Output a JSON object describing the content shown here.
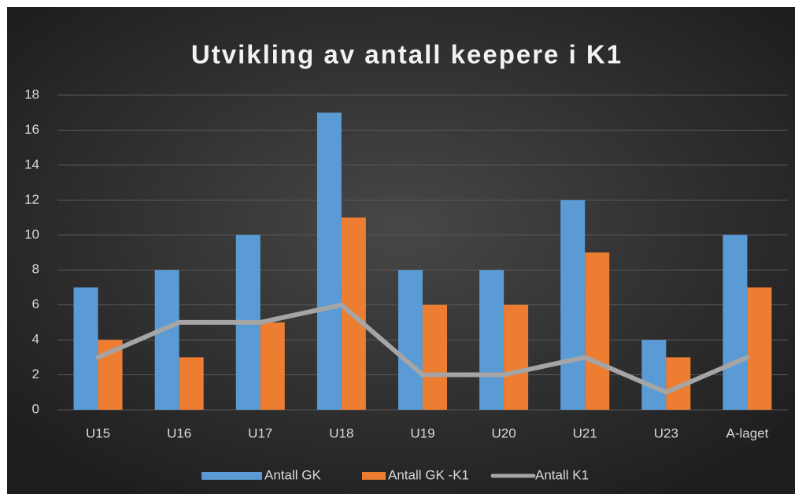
{
  "chart_data": {
    "type": "bar",
    "title": "Utvikling av antall keepere i K1",
    "categories": [
      "U15",
      "U16",
      "U17",
      "U18",
      "U19",
      "U20",
      "U21",
      "U23",
      "A-laget"
    ],
    "series": [
      {
        "name": "Antall GK",
        "color": "#5b9bd5",
        "type": "bar",
        "values": [
          7,
          8,
          10,
          17,
          8,
          8,
          12,
          4,
          10
        ]
      },
      {
        "name": "Antall GK -K1",
        "color": "#ed7d31",
        "type": "bar",
        "values": [
          4,
          3,
          5,
          11,
          6,
          6,
          9,
          3,
          7
        ]
      },
      {
        "name": "Antall K1",
        "color": "#a5a5a5",
        "type": "line",
        "values": [
          3,
          5,
          5,
          6,
          2,
          2,
          3,
          1,
          3
        ]
      }
    ],
    "ylim": [
      0,
      18
    ],
    "yticks": [
      0,
      2,
      4,
      6,
      8,
      10,
      12,
      14,
      16,
      18
    ],
    "grid": true,
    "legend": "bottom"
  }
}
